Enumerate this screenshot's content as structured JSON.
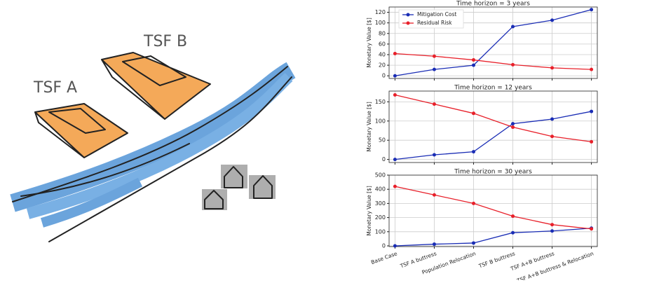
{
  "illustration": {
    "labels": [
      "TSF A",
      "TSF B"
    ]
  },
  "chart_data": [
    {
      "type": "line",
      "title": "Time horizon = 3 years",
      "ylabel": "Monetary Value [$]",
      "grid": true,
      "legend": "upper left",
      "ylim": [
        -5,
        130
      ],
      "yticks": [
        0,
        20,
        40,
        60,
        80,
        100,
        120
      ],
      "series": [
        {
          "name": "Mitigation Cost",
          "color": "#1a2db5",
          "values": [
            0,
            12,
            20,
            93,
            105,
            125
          ]
        },
        {
          "name": "Residual Risk",
          "color": "#e8202a",
          "values": [
            42,
            37,
            30,
            21,
            15,
            12
          ]
        }
      ]
    },
    {
      "type": "line",
      "title": "Time horizon = 12 years",
      "ylabel": "Monetary Value [$]",
      "grid": true,
      "ylim": [
        -8,
        178
      ],
      "yticks": [
        0,
        50,
        100,
        150
      ],
      "series": [
        {
          "name": "Mitigation Cost",
          "color": "#1a2db5",
          "values": [
            0,
            12,
            20,
            93,
            105,
            125
          ]
        },
        {
          "name": "Residual Risk",
          "color": "#e8202a",
          "values": [
            168,
            144,
            120,
            84,
            60,
            46
          ]
        }
      ]
    },
    {
      "type": "line",
      "title": "Time horizon = 30 years",
      "ylabel": "Monetary Value [$]",
      "grid": true,
      "categories": [
        "Base Case",
        "TSF A buttress",
        "Population Relocation",
        "TSF B buttress",
        "TSF A+B buttress",
        "TSF A+B buttress & Relocation"
      ],
      "ylim": [
        -5,
        500
      ],
      "yticks": [
        0,
        100,
        200,
        300,
        400,
        500
      ],
      "series": [
        {
          "name": "Mitigation Cost",
          "color": "#1a2db5",
          "values": [
            0,
            12,
            20,
            93,
            105,
            125
          ]
        },
        {
          "name": "Residual Risk",
          "color": "#e8202a",
          "values": [
            420,
            360,
            300,
            210,
            150,
            120
          ]
        }
      ]
    }
  ]
}
